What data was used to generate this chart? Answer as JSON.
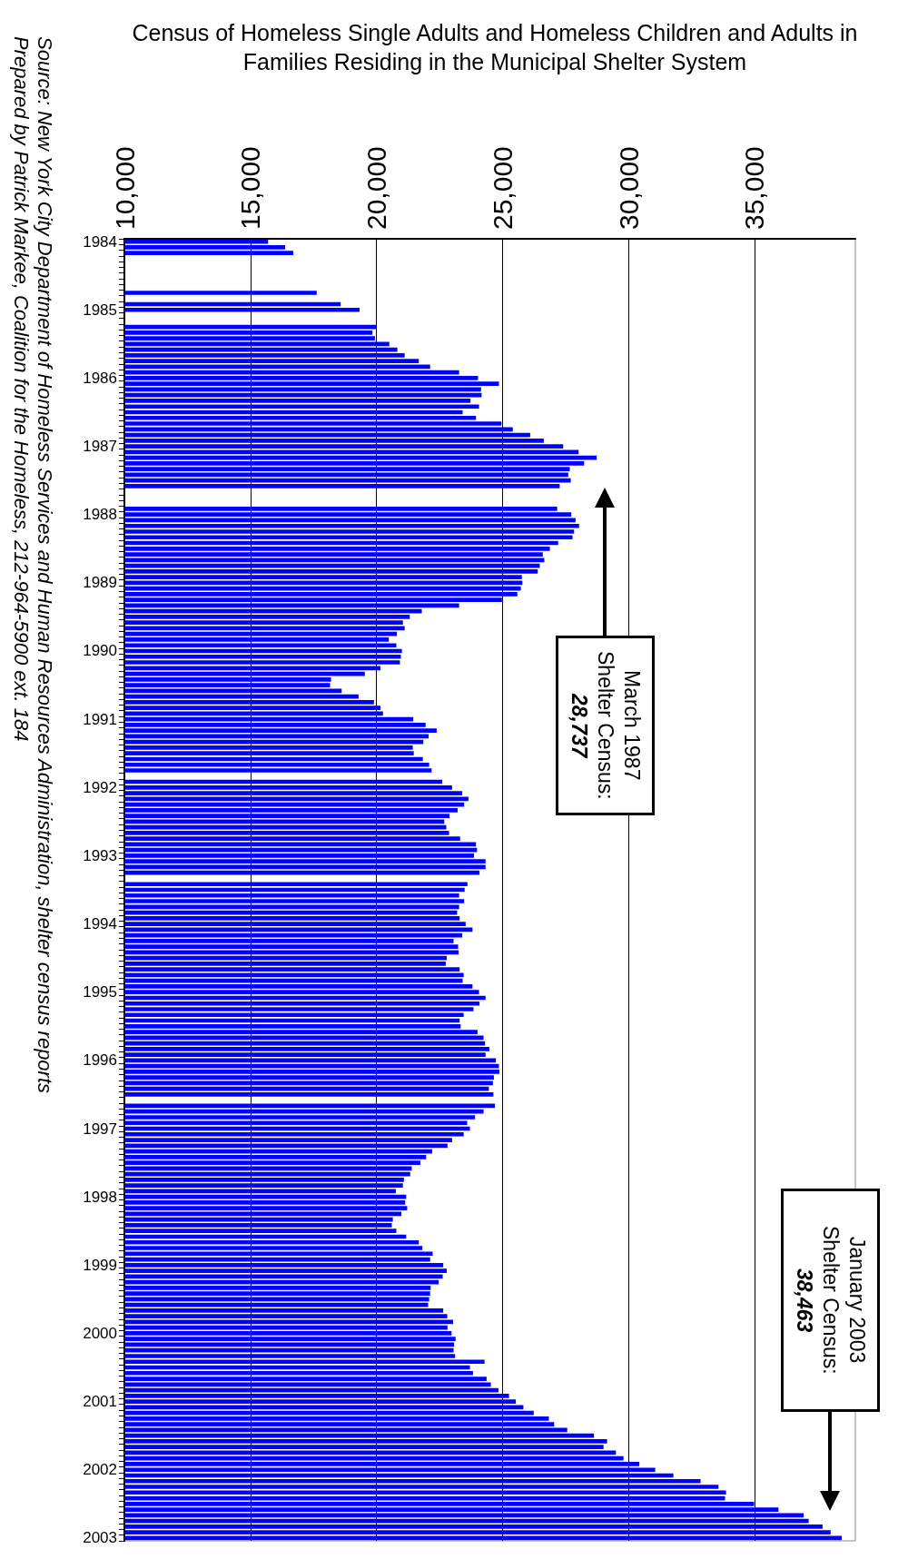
{
  "chart_data": {
    "type": "bar",
    "orientation": "horizontal",
    "title": "Census of Homeless Single Adults and Homeless Children and Adults in Families Residing in the Municipal Shelter System",
    "categories": [
      "1984",
      null,
      null,
      null,
      null,
      null,
      null,
      null,
      null,
      null,
      null,
      null,
      "1985",
      null,
      null,
      null,
      null,
      null,
      null,
      null,
      null,
      null,
      null,
      null,
      "1986",
      null,
      null,
      null,
      null,
      null,
      null,
      null,
      null,
      null,
      null,
      null,
      "1987",
      null,
      null,
      null,
      null,
      null,
      null,
      null,
      null,
      null,
      null,
      null,
      "1988",
      null,
      null,
      null,
      null,
      null,
      null,
      null,
      null,
      null,
      null,
      null,
      "1989",
      null,
      null,
      null,
      null,
      null,
      null,
      null,
      null,
      null,
      null,
      null,
      "1990",
      null,
      null,
      null,
      null,
      null,
      null,
      null,
      null,
      null,
      null,
      null,
      "1991",
      null,
      null,
      null,
      null,
      null,
      null,
      null,
      null,
      null,
      null,
      null,
      "1992",
      null,
      null,
      null,
      null,
      null,
      null,
      null,
      null,
      null,
      null,
      null,
      "1993",
      null,
      null,
      null,
      null,
      null,
      null,
      null,
      null,
      null,
      null,
      null,
      "1994",
      null,
      null,
      null,
      null,
      null,
      null,
      null,
      null,
      null,
      null,
      null,
      "1995",
      null,
      null,
      null,
      null,
      null,
      null,
      null,
      null,
      null,
      null,
      null,
      "1996",
      null,
      null,
      null,
      null,
      null,
      null,
      null,
      null,
      null,
      null,
      null,
      "1997",
      null,
      null,
      null,
      null,
      null,
      null,
      null,
      null,
      null,
      null,
      null,
      "1998",
      null,
      null,
      null,
      null,
      null,
      null,
      null,
      null,
      null,
      null,
      null,
      "1999",
      null,
      null,
      null,
      null,
      null,
      null,
      null,
      null,
      null,
      null,
      null,
      "2000",
      null,
      null,
      null,
      null,
      null,
      null,
      null,
      null,
      null,
      null,
      null,
      "2001",
      null,
      null,
      null,
      null,
      null,
      null,
      null,
      null,
      null,
      null,
      null,
      "2002",
      null,
      null,
      null,
      null,
      null,
      null,
      null,
      null,
      null,
      null,
      null,
      "2003"
    ],
    "values": [
      15700,
      16380,
      16700,
      null,
      null,
      null,
      null,
      null,
      null,
      17630,
      null,
      18580,
      19330,
      null,
      null,
      20000,
      19840,
      19940,
      20510,
      20830,
      21120,
      21680,
      22130,
      23280,
      24030,
      24860,
      24150,
      24170,
      23730,
      24070,
      23420,
      23950,
      24960,
      25410,
      26100,
      26640,
      27410,
      28020,
      28740,
      28240,
      27670,
      27610,
      27710,
      27270,
      null,
      null,
      null,
      27170,
      27730,
      27900,
      28040,
      27840,
      27780,
      27210,
      26880,
      26600,
      26660,
      26480,
      26400,
      25770,
      25790,
      25730,
      25590,
      24980,
      23280,
      21800,
      21320,
      21050,
      21120,
      20810,
      20490,
      20790,
      21010,
      20970,
      20930,
      20160,
      19540,
      18200,
      18160,
      18620,
      19290,
      19900,
      20160,
      20260,
      21460,
      21950,
      22390,
      22070,
      21860,
      21440,
      21480,
      21840,
      22090,
      22190,
      null,
      22610,
      23000,
      23400,
      23650,
      23480,
      23220,
      22900,
      22690,
      22770,
      22880,
      23320,
      23950,
      23990,
      23870,
      24330,
      24330,
      24090,
      null,
      23610,
      23500,
      23280,
      23480,
      23280,
      23200,
      23300,
      23540,
      23810,
      23400,
      23060,
      23240,
      23260,
      22790,
      22750,
      23300,
      23460,
      23420,
      23810,
      24070,
      24330,
      24090,
      23850,
      23460,
      23300,
      23340,
      24010,
      24250,
      24310,
      24480,
      24330,
      24740,
      24860,
      24880,
      24660,
      24620,
      24460,
      24640,
      null,
      24700,
      24250,
      23910,
      23600,
      23710,
      23460,
      23000,
      22820,
      22210,
      21970,
      21740,
      21400,
      21340,
      21090,
      21050,
      20770,
      21180,
      21140,
      21220,
      20990,
      20650,
      20610,
      20790,
      21180,
      21680,
      21820,
      22230,
      22130,
      22650,
      22790,
      22630,
      22470,
      22150,
      22130,
      22090,
      22050,
      22650,
      22810,
      23040,
      22820,
      22980,
      23140,
      23080,
      23060,
      23120,
      24290,
      23710,
      23830,
      24370,
      24540,
      24840,
      25260,
      25530,
      25830,
      26240,
      26840,
      27050,
      27570,
      28630,
      29150,
      29010,
      29500,
      29800,
      30430,
      31060,
      31780,
      32860,
      33570,
      33870,
      33830,
      34980,
      35950,
      36950,
      37150,
      37700,
      38020,
      38460
    ],
    "color": "#0000ff",
    "xlim": [
      10000,
      39000
    ],
    "xticks": [
      {
        "value": 10000,
        "label": "10,000"
      },
      {
        "value": 15000,
        "label": "15,000"
      },
      {
        "value": 20000,
        "label": "20,000"
      },
      {
        "value": 25000,
        "label": "25,000"
      },
      {
        "value": 30000,
        "label": "30,000"
      },
      {
        "value": 35000,
        "label": "35,000"
      }
    ],
    "grid": "x",
    "annotations": [
      "March 1987\nShelter Census:\n28,737",
      "January 2003\nShelter Census:\n38,463",
      "Source:  New York City Department of Homeless Services and Human Resources Administration, shelter census reports",
      "Prepared by Patrick Markee, Coalition for the Homeless, 212-964-5900 ext. 184"
    ]
  }
}
